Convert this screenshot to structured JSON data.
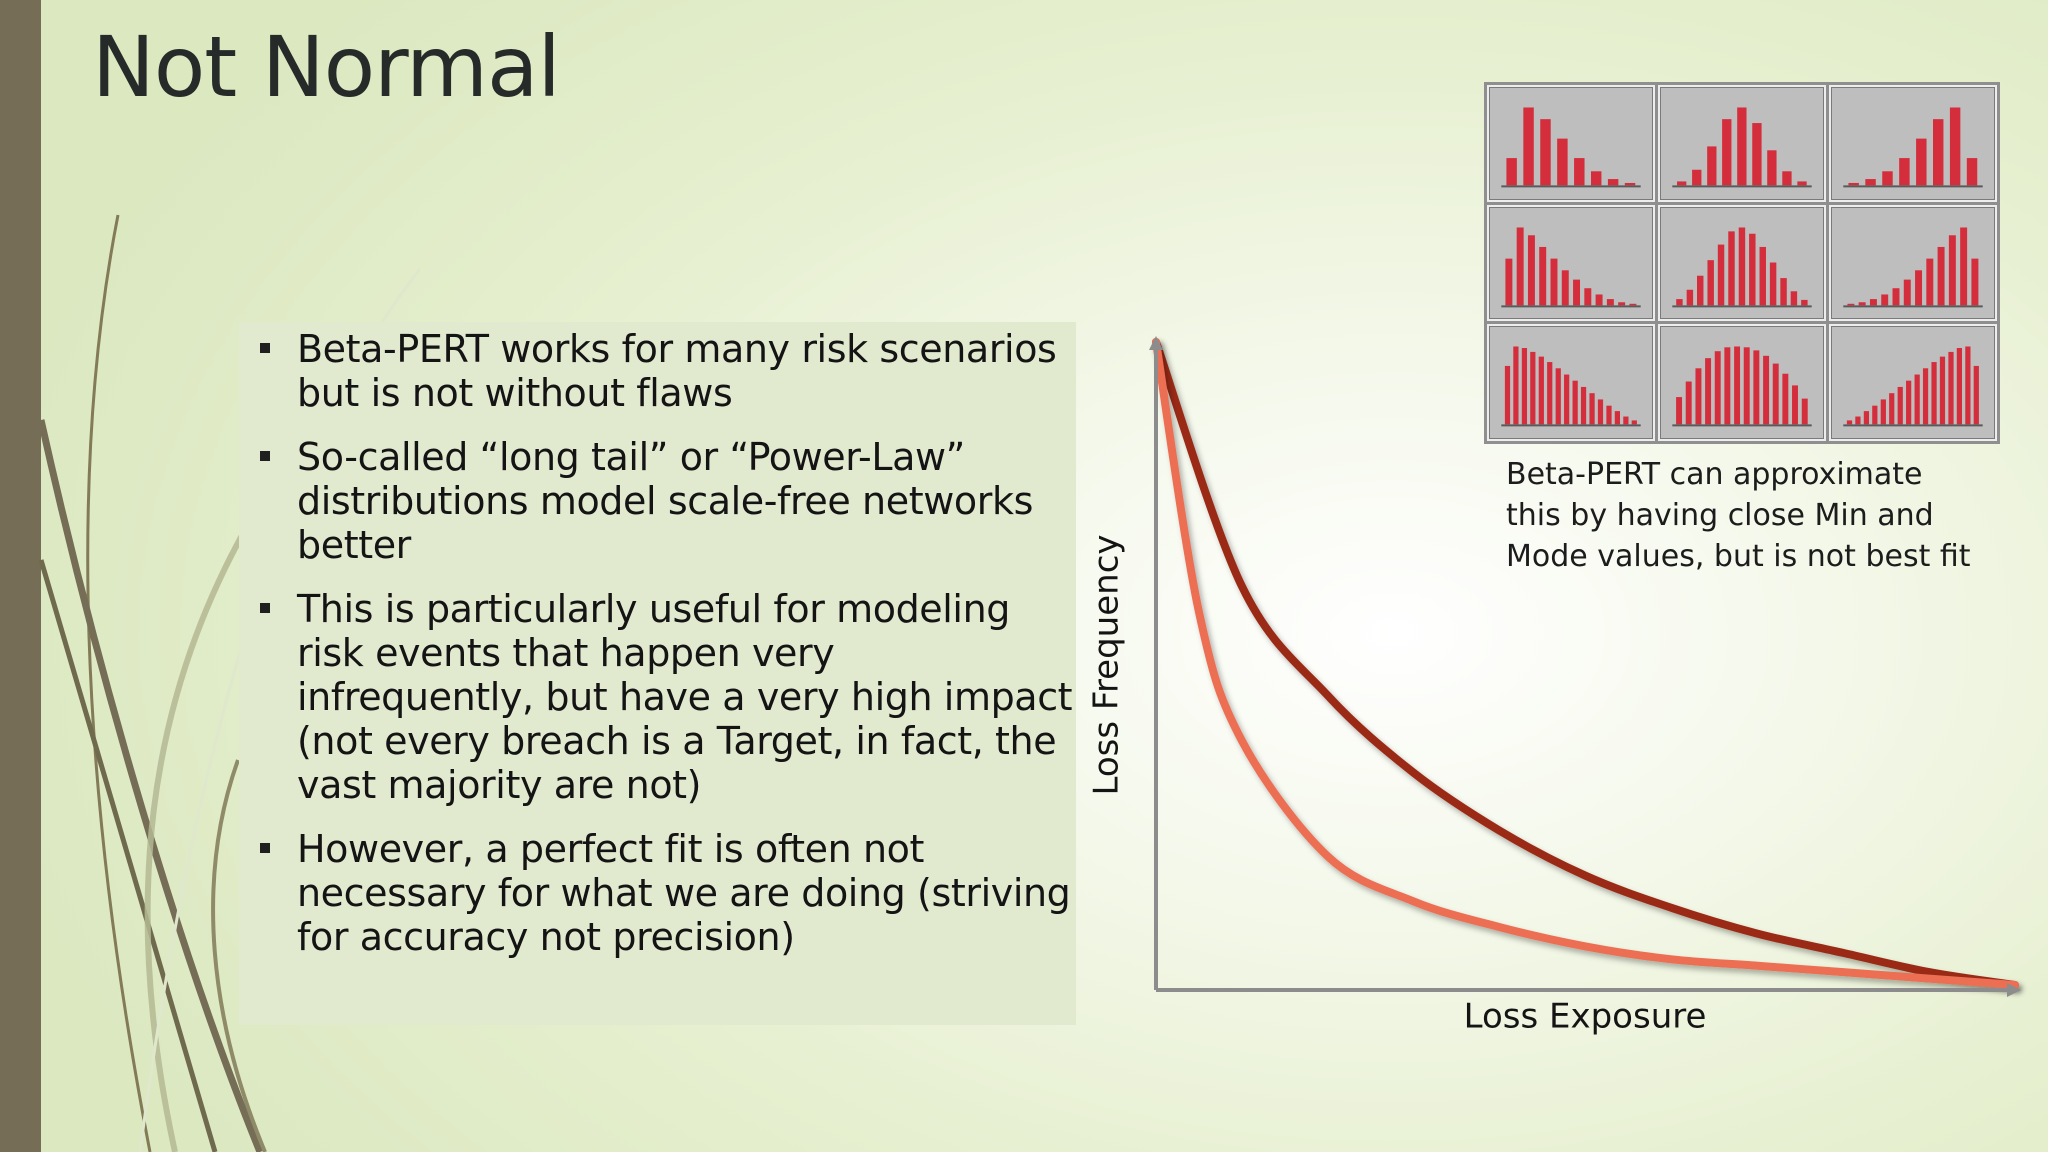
{
  "slide": {
    "title": "Not Normal",
    "bullets": [
      "Beta-PERT works for many risk scenarios but is not without flaws",
      "So-called “long tail” or “Power-Law” distributions model scale-free networks better",
      "This is particularly useful for modeling risk events that happen very infrequently, but have a very high impact (not every breach is a Target, in fact, the vast majority are not)",
      "However, a perfect fit is often not necessary for what we are doing (striving for accuracy not precision)"
    ],
    "caption": "Beta-PERT can approximate\nthis by having close Min and\nMode values, but is not best fit"
  },
  "chart_data": {
    "type": "line",
    "title": "",
    "xlabel": "Loss Exposure",
    "ylabel": "Loss Frequency",
    "xlim": [
      0,
      1
    ],
    "ylim": [
      0,
      1
    ],
    "grid": false,
    "series": [
      {
        "color": "#9a2c14",
        "x": [
          0,
          0.1,
          0.2,
          0.3,
          0.4,
          0.5,
          0.6,
          0.7,
          0.8,
          0.9,
          1.0
        ],
        "y": [
          1.0,
          0.62,
          0.45,
          0.33,
          0.24,
          0.17,
          0.12,
          0.08,
          0.05,
          0.02,
          0.0
        ]
      },
      {
        "color": "#ec6e52",
        "x": [
          0,
          0.05,
          0.1,
          0.2,
          0.3,
          0.4,
          0.5,
          0.6,
          0.7,
          0.8,
          0.9,
          1.0
        ],
        "y": [
          1.0,
          0.58,
          0.38,
          0.2,
          0.13,
          0.09,
          0.06,
          0.04,
          0.03,
          0.02,
          0.01,
          0.0
        ]
      }
    ]
  },
  "thumbnails": {
    "bar_color": "#d42e3c",
    "items": [
      {
        "values": [
          0.35,
          1.0,
          0.85,
          0.6,
          0.35,
          0.18,
          0.08,
          0.03
        ]
      },
      {
        "values": [
          0.05,
          0.2,
          0.5,
          0.85,
          1.0,
          0.8,
          0.45,
          0.18,
          0.05
        ]
      },
      {
        "values": [
          0.03,
          0.08,
          0.18,
          0.35,
          0.6,
          0.85,
          1.0,
          0.35
        ]
      },
      {
        "values": [
          0.6,
          1.0,
          0.9,
          0.75,
          0.6,
          0.45,
          0.33,
          0.22,
          0.14,
          0.08,
          0.04,
          0.02
        ]
      },
      {
        "values": [
          0.08,
          0.2,
          0.38,
          0.58,
          0.78,
          0.95,
          1.0,
          0.92,
          0.75,
          0.55,
          0.35,
          0.18,
          0.07
        ]
      },
      {
        "values": [
          0.02,
          0.04,
          0.08,
          0.14,
          0.22,
          0.33,
          0.45,
          0.6,
          0.75,
          0.9,
          1.0,
          0.6
        ]
      },
      {
        "values": [
          0.75,
          1.0,
          0.98,
          0.93,
          0.87,
          0.8,
          0.72,
          0.64,
          0.56,
          0.48,
          0.4,
          0.32,
          0.24,
          0.17,
          0.1,
          0.05
        ]
      },
      {
        "values": [
          0.35,
          0.55,
          0.72,
          0.85,
          0.94,
          0.99,
          1.0,
          0.99,
          0.95,
          0.88,
          0.78,
          0.65,
          0.5,
          0.33
        ]
      },
      {
        "values": [
          0.05,
          0.1,
          0.17,
          0.24,
          0.32,
          0.4,
          0.48,
          0.56,
          0.64,
          0.72,
          0.8,
          0.87,
          0.93,
          0.98,
          1.0,
          0.75
        ]
      }
    ]
  }
}
